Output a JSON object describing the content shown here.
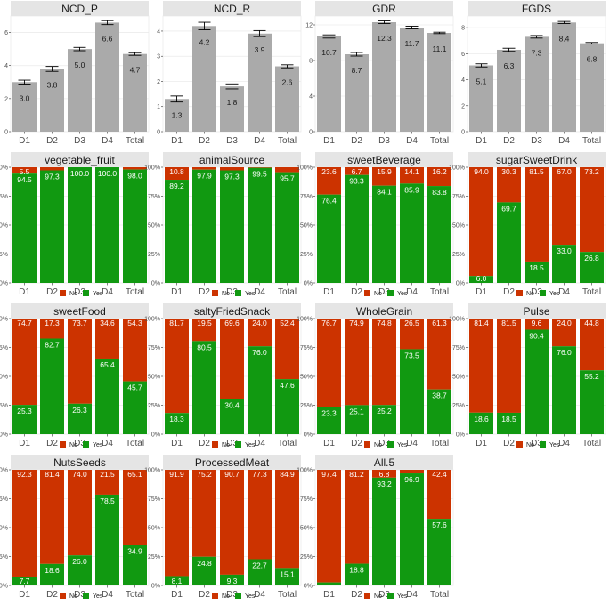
{
  "colors": {
    "no": "#cc3300",
    "yes": "#119911",
    "bar_gray": "#aaaaaa",
    "panel_bg": "#ffffff",
    "grid": "#ebebeb",
    "strip_bg": "#e5e5e5",
    "text": "#1a1a1a"
  },
  "legend": {
    "no": "No",
    "yes": "Yes"
  },
  "chart_data": [
    {
      "type": "bar",
      "title": "NCD_P",
      "categories": [
        "D1",
        "D2",
        "D3",
        "D4",
        "Total"
      ],
      "values": [
        3.0,
        3.8,
        5.0,
        6.6,
        4.7
      ],
      "labels": [
        "3.0",
        "3.8",
        "5.0",
        "6.6",
        "4.7"
      ],
      "errors": [
        0.12,
        0.15,
        0.1,
        0.12,
        0.08
      ],
      "ylim": [
        0,
        7.0
      ],
      "yticks": [
        0,
        2,
        4,
        6
      ],
      "ytick_labels": [
        "0",
        "2",
        "4",
        "6"
      ]
    },
    {
      "type": "bar",
      "title": "NCD_R",
      "categories": [
        "D1",
        "D2",
        "D3",
        "D4",
        "Total"
      ],
      "values": [
        1.3,
        4.2,
        1.8,
        3.9,
        2.6
      ],
      "labels": [
        "1.3",
        "4.2",
        "1.8",
        "3.9",
        "2.6"
      ],
      "errors": [
        0.12,
        0.15,
        0.1,
        0.12,
        0.06
      ],
      "ylim": [
        0,
        4.6
      ],
      "yticks": [
        0,
        1,
        2,
        3,
        4
      ],
      "ytick_labels": [
        "0",
        "1",
        "2",
        "3",
        "4"
      ]
    },
    {
      "type": "bar",
      "title": "GDR",
      "categories": [
        "D1",
        "D2",
        "D3",
        "D4",
        "Total"
      ],
      "values": [
        10.7,
        8.7,
        12.3,
        11.7,
        11.1
      ],
      "labels": [
        "10.7",
        "8.7",
        "12.3",
        "11.7",
        "11.1"
      ],
      "errors": [
        0.18,
        0.2,
        0.15,
        0.15,
        0.08
      ],
      "ylim": [
        0,
        13.0
      ],
      "yticks": [
        0,
        4,
        8,
        12
      ],
      "ytick_labels": [
        "0",
        "4",
        "8",
        "12"
      ]
    },
    {
      "type": "bar",
      "title": "FGDS",
      "categories": [
        "D1",
        "D2",
        "D3",
        "D4",
        "Total"
      ],
      "values": [
        5.1,
        6.3,
        7.3,
        8.4,
        6.8
      ],
      "labels": [
        "5.1",
        "6.3",
        "7.3",
        "8.4",
        "6.8"
      ],
      "errors": [
        0.12,
        0.12,
        0.1,
        0.08,
        0.06
      ],
      "ylim": [
        0,
        8.9
      ],
      "yticks": [
        0,
        2,
        4,
        6,
        8
      ],
      "ytick_labels": [
        "0",
        "2",
        "4",
        "6",
        "8"
      ]
    },
    {
      "type": "bar",
      "stacked": true,
      "title": "vegetable_fruit",
      "categories": [
        "D1",
        "D2",
        "D3",
        "D4",
        "Total"
      ],
      "yes": [
        94.5,
        97.3,
        100.0,
        100.0,
        98.0
      ],
      "no_labels": [
        "5.5",
        "",
        "",
        "",
        ""
      ],
      "yes_labels": [
        "94.5",
        "97.3",
        "100.0",
        "100.0",
        "98.0"
      ],
      "ytick_labels": [
        "0%",
        "25%",
        "50%",
        "75%",
        "100%"
      ]
    },
    {
      "type": "bar",
      "stacked": true,
      "title": "animalSource",
      "categories": [
        "D1",
        "D2",
        "D3",
        "D4",
        "Total"
      ],
      "yes": [
        89.2,
        97.9,
        97.3,
        99.5,
        95.7
      ],
      "no_labels": [
        "10.8",
        "",
        "",
        "",
        ""
      ],
      "yes_labels": [
        "89.2",
        "97.9",
        "97.3",
        "99.5",
        "95.7"
      ],
      "ytick_labels": [
        "0%",
        "25%",
        "50%",
        "75%",
        "100%"
      ]
    },
    {
      "type": "bar",
      "stacked": true,
      "title": "sweetBeverage",
      "categories": [
        "D1",
        "D2",
        "D3",
        "D4",
        "Total"
      ],
      "yes": [
        76.4,
        93.3,
        84.1,
        85.9,
        83.8
      ],
      "no_labels": [
        "23.6",
        "6.7",
        "15.9",
        "14.1",
        "16.2"
      ],
      "yes_labels": [
        "76.4",
        "93.3",
        "84.1",
        "85.9",
        "83.8"
      ],
      "ytick_labels": [
        "0%",
        "25%",
        "50%",
        "75%",
        "100%"
      ]
    },
    {
      "type": "bar",
      "stacked": true,
      "title": "sugarSweetDrink",
      "categories": [
        "D1",
        "D2",
        "D3",
        "D4",
        "Total"
      ],
      "yes": [
        6.0,
        69.7,
        18.5,
        33.0,
        26.8
      ],
      "no_labels": [
        "94.0",
        "30.3",
        "81.5",
        "67.0",
        "73.2"
      ],
      "yes_labels": [
        "6.0",
        "69.7",
        "18.5",
        "33.0",
        "26.8"
      ],
      "ytick_labels": [
        "0%",
        "25%",
        "50%",
        "75%",
        "100%"
      ]
    },
    {
      "type": "bar",
      "stacked": true,
      "title": "sweetFood",
      "categories": [
        "D1",
        "D2",
        "D3",
        "D4",
        "Total"
      ],
      "yes": [
        25.3,
        82.7,
        26.3,
        65.4,
        45.7
      ],
      "no_labels": [
        "74.7",
        "17.3",
        "73.7",
        "34.6",
        "54.3"
      ],
      "yes_labels": [
        "25.3",
        "82.7",
        "26.3",
        "65.4",
        "45.7"
      ],
      "ytick_labels": [
        "0%",
        "25%",
        "50%",
        "75%",
        "100%"
      ]
    },
    {
      "type": "bar",
      "stacked": true,
      "title": "saltyFriedSnack",
      "categories": [
        "D1",
        "D2",
        "D3",
        "D4",
        "Total"
      ],
      "yes": [
        18.3,
        80.5,
        30.4,
        76.0,
        47.6
      ],
      "no_labels": [
        "81.7",
        "19.5",
        "69.6",
        "24.0",
        "52.4"
      ],
      "yes_labels": [
        "18.3",
        "80.5",
        "30.4",
        "76.0",
        "47.6"
      ],
      "ytick_labels": [
        "0%",
        "25%",
        "50%",
        "75%",
        "100%"
      ]
    },
    {
      "type": "bar",
      "stacked": true,
      "title": "WholeGrain",
      "categories": [
        "D1",
        "D2",
        "D3",
        "D4",
        "Total"
      ],
      "yes": [
        23.3,
        25.1,
        25.2,
        73.5,
        38.7
      ],
      "no_labels": [
        "76.7",
        "74.9",
        "74.8",
        "26.5",
        "61.3"
      ],
      "yes_labels": [
        "23.3",
        "25.1",
        "25.2",
        "73.5",
        "38.7"
      ],
      "ytick_labels": [
        "0%",
        "25%",
        "50%",
        "75%",
        "100%"
      ]
    },
    {
      "type": "bar",
      "stacked": true,
      "title": "Pulse",
      "categories": [
        "D1",
        "D2",
        "D3",
        "D4",
        "Total"
      ],
      "yes": [
        18.6,
        18.5,
        90.4,
        76.0,
        55.2
      ],
      "no_labels": [
        "81.4",
        "81.5",
        "9.6",
        "24.0",
        "44.8"
      ],
      "yes_labels": [
        "18.6",
        "18.5",
        "90.4",
        "76.0",
        "55.2"
      ],
      "ytick_labels": [
        "0%",
        "25%",
        "50%",
        "75%",
        "100%"
      ]
    },
    {
      "type": "bar",
      "stacked": true,
      "title": "NutsSeeds",
      "categories": [
        "D1",
        "D2",
        "D3",
        "D4",
        "Total"
      ],
      "yes": [
        7.7,
        18.6,
        26.0,
        78.5,
        34.9
      ],
      "no_labels": [
        "92.3",
        "81.4",
        "74.0",
        "21.5",
        "65.1"
      ],
      "yes_labels": [
        "7.7",
        "18.6",
        "26.0",
        "78.5",
        "34.9"
      ],
      "ytick_labels": [
        "0%",
        "25%",
        "50%",
        "75%",
        "100%"
      ]
    },
    {
      "type": "bar",
      "stacked": true,
      "title": "ProcessedMeat",
      "categories": [
        "D1",
        "D2",
        "D3",
        "D4",
        "Total"
      ],
      "yes": [
        8.1,
        24.8,
        9.3,
        22.7,
        15.1
      ],
      "no_labels": [
        "91.9",
        "75.2",
        "90.7",
        "77.3",
        "84.9"
      ],
      "yes_labels": [
        "8.1",
        "24.8",
        "9.3",
        "22.7",
        "15.1"
      ],
      "ytick_labels": [
        "0%",
        "25%",
        "50%",
        "75%",
        "100%"
      ]
    },
    {
      "type": "bar",
      "stacked": true,
      "title": "All.5",
      "categories": [
        "D1",
        "D2",
        "D3",
        "D4",
        "Total"
      ],
      "yes": [
        2.6,
        18.8,
        93.2,
        96.9,
        57.6
      ],
      "no_labels": [
        "97.4",
        "81.2",
        "6.8",
        "",
        "42.4"
      ],
      "yes_labels": [
        "",
        "18.8",
        "93.2",
        "96.9",
        "57.6"
      ],
      "ytick_labels": [
        "0%",
        "25%",
        "50%",
        "75%",
        "100%"
      ]
    }
  ]
}
